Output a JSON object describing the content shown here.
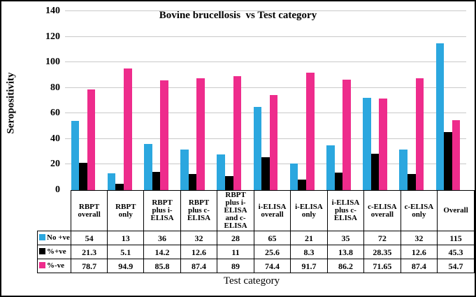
{
  "figure": {
    "title": "Bovine brucellosis  vs Test category",
    "y_axis_label": "Seropositivity",
    "x_axis_label": "Test category"
  },
  "colors": {
    "series_no_positive": "#2BA7DF",
    "series_pct_positive": "#000000",
    "series_pct_negative": "#EE2C8C",
    "gridline": "#C9C9C9",
    "axis_and_border": "#000000"
  },
  "chart_data": {
    "type": "bar",
    "title": "Bovine brucellosis vs Test category",
    "xlabel": "Test category",
    "ylabel": "Seropositivity",
    "ylim": [
      0,
      140
    ],
    "yticks": [
      0,
      20,
      40,
      60,
      80,
      100,
      120,
      140
    ],
    "grid": true,
    "legend_position": "data-table-left",
    "categories": [
      "RBPT overall",
      "RBPT only",
      "RBPT plus i-ELISA",
      "RBPT plus c-ELISA",
      "RBPT plus i-ELISA and c-ELISA",
      "i-ELISA overall",
      "i-ELISA only",
      "i-ELISA plus c-ELISA",
      "c-ELISA overall",
      "c-ELISA only",
      "Overall"
    ],
    "series": [
      {
        "name": "No +ve",
        "color": "#2BA7DF",
        "values": [
          54,
          13,
          36,
          32,
          28,
          65,
          21,
          35,
          72,
          32,
          115
        ]
      },
      {
        "name": "%+ve",
        "color": "#000000",
        "values": [
          21.3,
          5.1,
          14.2,
          12.6,
          11,
          25.6,
          8.3,
          13.8,
          28.35,
          12.6,
          45.3
        ]
      },
      {
        "name": "%-ve",
        "color": "#EE2C8C",
        "values": [
          78.7,
          94.9,
          85.8,
          87.4,
          89,
          74.4,
          91.7,
          86.2,
          71.65,
          87.4,
          54.7
        ]
      }
    ]
  }
}
